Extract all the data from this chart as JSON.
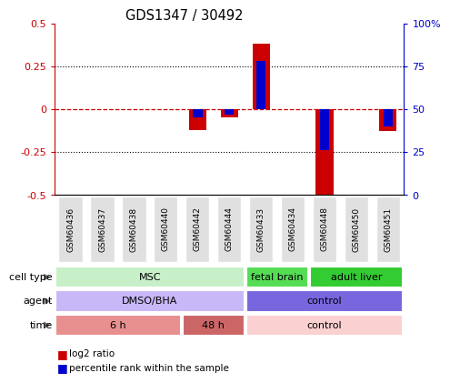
{
  "title": "GDS1347 / 30492",
  "samples": [
    "GSM60436",
    "GSM60437",
    "GSM60438",
    "GSM60440",
    "GSM60442",
    "GSM60444",
    "GSM60433",
    "GSM60434",
    "GSM60448",
    "GSM60450",
    "GSM60451"
  ],
  "log2_ratio": [
    0.0,
    0.0,
    0.0,
    0.0,
    -0.12,
    -0.05,
    0.38,
    0.0,
    -0.52,
    0.0,
    -0.13
  ],
  "percentile_rank": [
    50,
    50,
    50,
    50,
    45,
    47,
    78,
    50,
    26,
    50,
    40
  ],
  "ylim": [
    -0.5,
    0.5
  ],
  "yticks_left": [
    -0.5,
    -0.25,
    0.0,
    0.25,
    0.5
  ],
  "yticks_right": [
    0,
    25,
    50,
    75,
    100
  ],
  "ytick_labels_left": [
    "-0.5",
    "-0.25",
    "0",
    "0.25",
    "0.5"
  ],
  "ytick_labels_right": [
    "0",
    "25",
    "50",
    "75",
    "100%"
  ],
  "dotted_lines": [
    -0.25,
    0.25
  ],
  "cell_type_groups": [
    {
      "label": "MSC",
      "start": 0,
      "end": 6,
      "color": "#c8f0c8"
    },
    {
      "label": "fetal brain",
      "start": 6,
      "end": 8,
      "color": "#55dd55"
    },
    {
      "label": "adult liver",
      "start": 8,
      "end": 11,
      "color": "#33cc33"
    }
  ],
  "agent_groups": [
    {
      "label": "DMSO/BHA",
      "start": 0,
      "end": 6,
      "color": "#c8b8f8"
    },
    {
      "label": "control",
      "start": 6,
      "end": 11,
      "color": "#7766dd"
    }
  ],
  "time_groups": [
    {
      "label": "6 h",
      "start": 0,
      "end": 4,
      "color": "#e89090"
    },
    {
      "label": "48 h",
      "start": 4,
      "end": 6,
      "color": "#cc6666"
    },
    {
      "label": "control",
      "start": 6,
      "end": 11,
      "color": "#fad0d0"
    }
  ],
  "row_labels": [
    "cell type",
    "agent",
    "time"
  ],
  "bar_color_red": "#cc0000",
  "bar_color_blue": "#0000cc",
  "zero_line_color": "#cc0000",
  "grid_color": "#000000",
  "bg_color": "#ffffff",
  "left_axis_color": "#cc0000",
  "right_axis_color": "#0000cc",
  "bar_width": 0.55,
  "percentile_bar_width": 0.3,
  "label_box_color": "#e0e0e0",
  "legend_red_label": "log2 ratio",
  "legend_blue_label": "percentile rank within the sample"
}
